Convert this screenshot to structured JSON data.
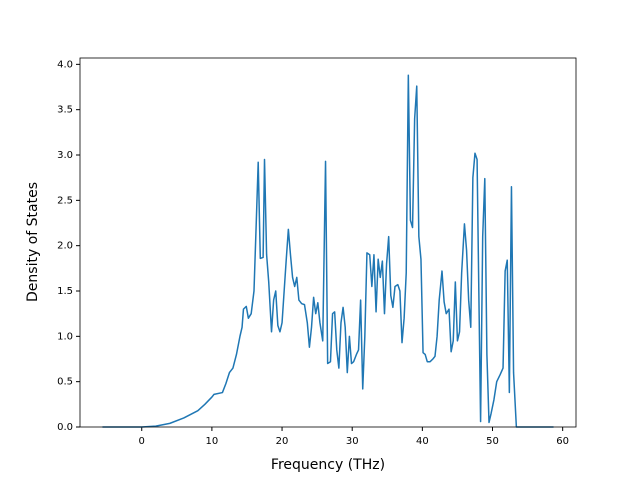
{
  "chart_data": {
    "type": "line",
    "xlabel": "Frequency (THz)",
    "ylabel": "Density of States",
    "x": [
      -5.6,
      0,
      2,
      4,
      6,
      8,
      9,
      10,
      10.3,
      11.5,
      12,
      12.5,
      13,
      13.5,
      14,
      14.3,
      14.5,
      14.9,
      15.2,
      15.6,
      16,
      16.3,
      16.6,
      16.9,
      17.3,
      17.5,
      17.8,
      18.1,
      18.5,
      18.8,
      19.1,
      19.4,
      19.7,
      20,
      20.3,
      20.6,
      20.9,
      21.2,
      21.5,
      21.8,
      22.1,
      22.4,
      22.8,
      23.2,
      23.6,
      23.9,
      24.2,
      24.5,
      24.8,
      25.1,
      25.4,
      25.8,
      26.2,
      26.5,
      26.9,
      27.2,
      27.5,
      27.8,
      28.1,
      28.4,
      28.7,
      29,
      29.3,
      29.6,
      29.9,
      30.2,
      30.6,
      30.9,
      31.2,
      31.5,
      31.8,
      32.1,
      32.5,
      32.8,
      33.1,
      33.4,
      33.7,
      34,
      34.3,
      34.6,
      34.9,
      35.2,
      35.5,
      35.8,
      36.1,
      36.5,
      36.8,
      37.1,
      37.4,
      37.7,
      38,
      38.3,
      38.6,
      38.9,
      39.2,
      39.5,
      39.8,
      40.1,
      40.4,
      40.7,
      41.1,
      41.5,
      41.8,
      42.1,
      42.4,
      42.8,
      43.1,
      43.4,
      43.8,
      44.1,
      44.4,
      44.7,
      45,
      45.3,
      45.6,
      46,
      46.3,
      46.6,
      46.9,
      47.2,
      47.5,
      47.8,
      48.1,
      48.3,
      48.6,
      48.9,
      49.2,
      49.5,
      49.8,
      50.2,
      50.6,
      51.1,
      51.5,
      51.8,
      52.1,
      52.4,
      52.7,
      53,
      53.4,
      55,
      58.7
    ],
    "series": [
      {
        "name": "DOS",
        "color": "#1f77b4",
        "values": [
          0,
          0,
          0.01,
          0.04,
          0.1,
          0.18,
          0.25,
          0.33,
          0.36,
          0.38,
          0.48,
          0.6,
          0.65,
          0.8,
          1.0,
          1.1,
          1.3,
          1.33,
          1.2,
          1.25,
          1.5,
          2.2,
          2.92,
          1.86,
          1.87,
          2.95,
          1.9,
          1.6,
          1.05,
          1.4,
          1.5,
          1.12,
          1.05,
          1.15,
          1.5,
          1.85,
          2.18,
          1.9,
          1.65,
          1.55,
          1.65,
          1.4,
          1.36,
          1.35,
          1.15,
          0.88,
          1.1,
          1.43,
          1.25,
          1.37,
          1.15,
          0.95,
          2.93,
          0.7,
          0.72,
          1.25,
          1.27,
          0.85,
          0.65,
          1.15,
          1.32,
          1.1,
          0.6,
          1.0,
          0.7,
          0.72,
          0.8,
          0.85,
          1.4,
          0.42,
          1.0,
          1.92,
          1.9,
          1.55,
          1.9,
          1.27,
          1.85,
          1.65,
          1.83,
          1.25,
          1.8,
          2.1,
          1.45,
          1.32,
          1.55,
          1.57,
          1.5,
          0.93,
          1.2,
          1.7,
          3.88,
          2.28,
          2.2,
          3.4,
          3.76,
          2.1,
          1.85,
          0.82,
          0.8,
          0.72,
          0.72,
          0.75,
          0.78,
          1.0,
          1.4,
          1.72,
          1.38,
          1.25,
          1.3,
          0.83,
          0.95,
          1.6,
          0.95,
          1.05,
          1.7,
          2.24,
          1.95,
          1.4,
          1.1,
          2.75,
          3.02,
          2.95,
          1.2,
          0.06,
          2.1,
          2.74,
          0.8,
          0.05,
          0.15,
          0.3,
          0.5,
          0.58,
          0.65,
          1.72,
          1.84,
          0.38,
          2.65,
          0.6,
          0,
          0,
          0
        ]
      }
    ],
    "xlim": [
      -8.8,
      61.9
    ],
    "ylim": [
      0,
      4.07
    ],
    "xticks": [
      0,
      10,
      20,
      30,
      40,
      50,
      60
    ],
    "yticks": [
      {
        "value": 0,
        "label": "0.0"
      },
      {
        "value": 0.5,
        "label": "0.5"
      },
      {
        "value": 1,
        "label": "1.0"
      },
      {
        "value": 1.5,
        "label": "1.5"
      },
      {
        "value": 2,
        "label": "2.0"
      },
      {
        "value": 2.5,
        "label": "2.5"
      },
      {
        "value": 3,
        "label": "3.0"
      },
      {
        "value": 3.5,
        "label": "3.5"
      },
      {
        "value": 4,
        "label": "4.0"
      }
    ],
    "grid": false
  }
}
